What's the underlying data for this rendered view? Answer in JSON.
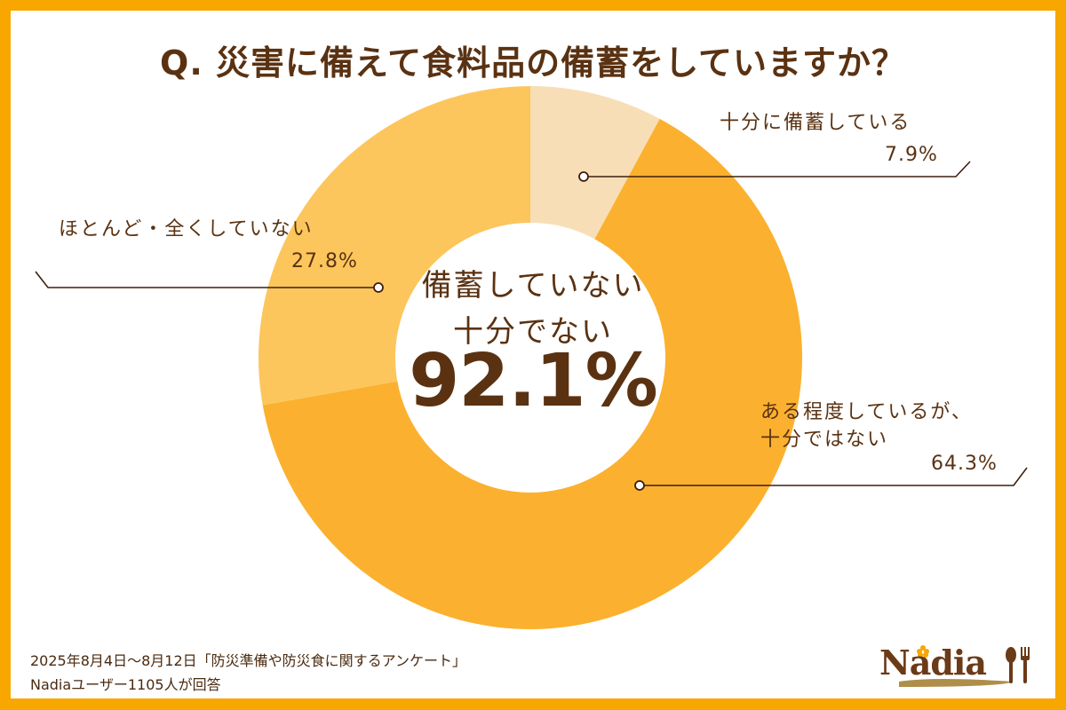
{
  "title": "Q. 災害に備えて食料品の備蓄をしていますか？",
  "center": {
    "line1": "備蓄していない",
    "line2": "十分でない",
    "value": "92.1%"
  },
  "segments": [
    {
      "label": "十分に備蓄している",
      "percent_label": "7.9%",
      "value": 7.9,
      "color": "#F8DEB7"
    },
    {
      "label_line1": "ある程度しているが、",
      "label_line2": "十分ではない",
      "percent_label": "64.3%",
      "value": 64.3,
      "color": "#FBB12F"
    },
    {
      "label": "ほとんど・全くしていない",
      "percent_label": "27.8%",
      "value": 27.8,
      "color": "#FCC65D"
    }
  ],
  "footnote": {
    "line1": "2025年8月4日～8月12日「防災準備や防災食に関するアンケート」",
    "line2": "Nadiaユーザー1105人が回答"
  },
  "logo": {
    "text": "Nadia"
  },
  "colors": {
    "border": "#F8A600",
    "text": "#5A3212",
    "background": "#FFFFFF"
  },
  "chart_data": {
    "type": "pie",
    "subtype": "donut",
    "title": "Q. 災害に備えて食料品の備蓄をしていますか？",
    "categories": [
      "十分に備蓄している",
      "ある程度しているが、十分ではない",
      "ほとんど・全くしていない"
    ],
    "values": [
      7.9,
      64.3,
      27.8
    ],
    "colors": [
      "#F8DEB7",
      "#FBB12F",
      "#FCC65D"
    ],
    "start_angle": "12 o'clock, clockwise",
    "center_annotation": "備蓄していない 十分でない 92.1%",
    "legend": "none (leader-line labels)"
  }
}
